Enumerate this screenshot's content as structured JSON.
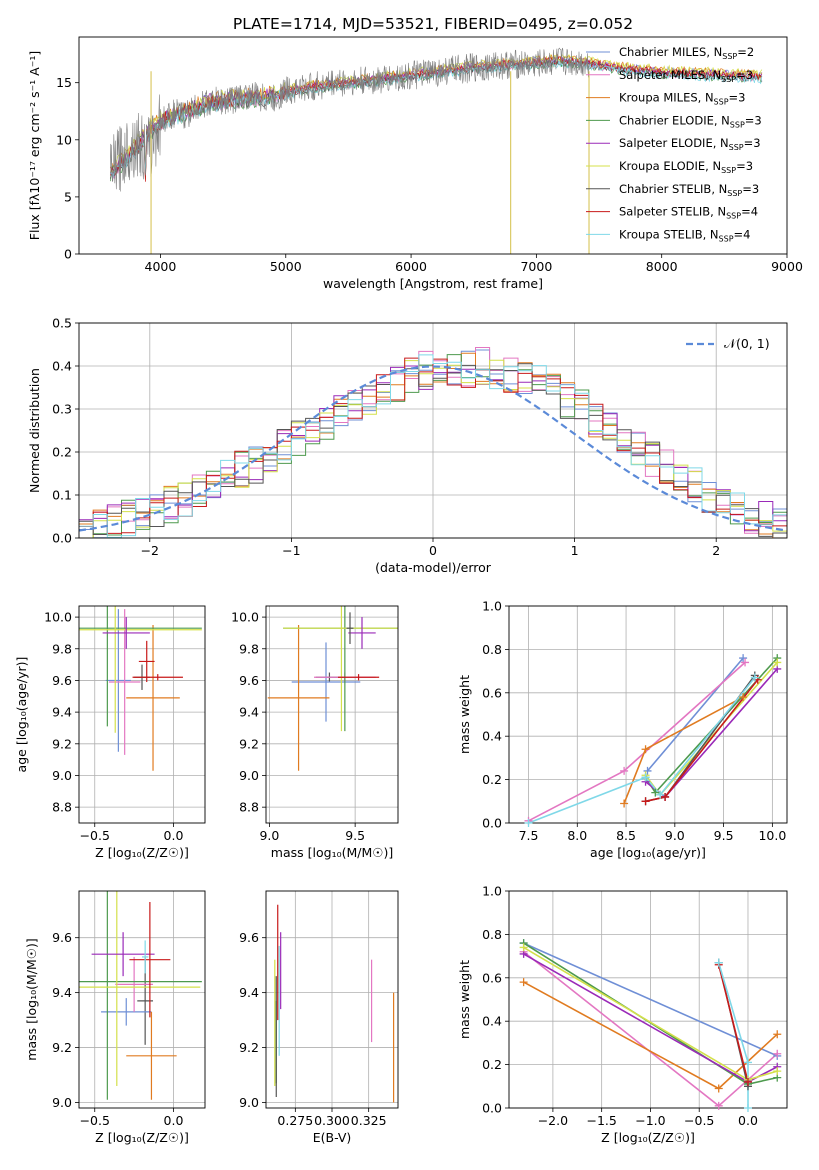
{
  "figure": {
    "title": "PLATE=1714, MJD=53521, FIBERID=0495, z=0.052"
  },
  "chart_data": [
    {
      "id": "spectrum",
      "type": "line",
      "title": "PLATE=1714, MJD=53521, FIBERID=0495, z=0.052",
      "xlabel": "wavelength [Angstrom, rest frame]",
      "ylabel": "Flux [fλ10⁻¹⁷ erg cm⁻² s⁻¹ A⁻¹]",
      "xlim": [
        3350,
        9000
      ],
      "ylim": [
        0,
        19
      ],
      "xticks": [
        "4000",
        "5000",
        "6000",
        "7000",
        "8000",
        "9000"
      ],
      "yticks": [
        "0",
        "5",
        "10",
        "15"
      ],
      "grid": false,
      "legend": "upper-right",
      "data_x": [
        3600,
        3700,
        3800,
        3900,
        4000,
        4100,
        4200,
        4300,
        4400,
        4500,
        4600,
        4700,
        4800,
        4900,
        5000,
        5200,
        5400,
        5600,
        5800,
        6000,
        6200,
        6400,
        6600,
        6800,
        7000,
        7200,
        7400
      ],
      "data_y": [
        7,
        8.8,
        9.8,
        8.9,
        11.6,
        12.3,
        12.2,
        12.9,
        13.3,
        13.4,
        13.6,
        13.9,
        13.7,
        13.5,
        14.3,
        14.6,
        15,
        15.1,
        15.3,
        15.6,
        15.9,
        16.2,
        16.4,
        16.6,
        16.6,
        16.9,
        16.7
      ],
      "models_x": [
        3600,
        4000,
        4400,
        4800,
        5200,
        5600,
        6000,
        6400,
        6800,
        7200,
        7400,
        7700,
        8000,
        8400,
        8800
      ],
      "models_y": [
        7,
        11.6,
        13.3,
        13.7,
        14.6,
        15.1,
        15.6,
        16.2,
        16.6,
        16.9,
        16.7,
        16.2,
        15.9,
        15.7,
        15.5
      ],
      "series": [
        {
          "name": "Chabrier MILES, N_SSP=2",
          "label_main": "Chabrier MILES, N",
          "label_sub": "SSP",
          "label_tail": "=2",
          "color": "#6f8fd6"
        },
        {
          "name": "Salpeter MILES, N_SSP=3",
          "label_main": "Salpeter MILES, N",
          "label_sub": "SSP",
          "label_tail": "=3",
          "color": "#e377c2"
        },
        {
          "name": "Kroupa MILES, N_SSP=3",
          "label_main": "Kroupa MILES, N",
          "label_sub": "SSP",
          "label_tail": "=3",
          "color": "#e07b20"
        },
        {
          "name": "Chabrier ELODIE, N_SSP=3",
          "label_main": "Chabrier ELODIE, N",
          "label_sub": "SSP",
          "label_tail": "=3",
          "color": "#4e9a4e"
        },
        {
          "name": "Salpeter ELODIE, N_SSP=3",
          "label_main": "Salpeter ELODIE, N",
          "label_sub": "SSP",
          "label_tail": "=3",
          "color": "#9a2ab8"
        },
        {
          "name": "Kroupa ELODIE, N_SSP=3",
          "label_main": "Kroupa ELODIE, N",
          "label_sub": "SSP",
          "label_tail": "=3",
          "color": "#d4e04a"
        },
        {
          "name": "Chabrier STELIB, N_SSP=3",
          "label_main": "Chabrier STELIB, N",
          "label_sub": "SSP",
          "label_tail": "=3",
          "color": "#555555"
        },
        {
          "name": "Salpeter STELIB, N_SSP=4",
          "label_main": "Salpeter STELIB, N",
          "label_sub": "SSP",
          "label_tail": "=4",
          "color": "#c81a1a"
        },
        {
          "name": "Kroupa STELIB, N_SSP=4",
          "label_main": "Kroupa STELIB, N",
          "label_sub": "SSP",
          "label_tail": "=4",
          "color": "#7fd8e8"
        }
      ]
    },
    {
      "id": "residuals",
      "type": "line",
      "xlabel": "(data-model)/error",
      "ylabel": "Normed distribution",
      "xlim": [
        -2.5,
        2.5
      ],
      "ylim": [
        0,
        0.5
      ],
      "xticks": [
        "−2",
        "−1",
        "0",
        "1",
        "2"
      ],
      "yticks": [
        "0.0",
        "0.1",
        "0.2",
        "0.3",
        "0.4",
        "0.5"
      ],
      "grid": true,
      "legend": "upper-right",
      "legend_label": "𝒩(0, 1)",
      "normal_curve": {
        "mean": 0,
        "sigma": 1,
        "color": "#5b8ad8"
      },
      "bin_edges_start": -2.5,
      "bin_width": 0.1,
      "base_hist": [
        0.02,
        0.03,
        0.04,
        0.05,
        0.06,
        0.07,
        0.08,
        0.09,
        0.11,
        0.13,
        0.15,
        0.16,
        0.17,
        0.19,
        0.21,
        0.23,
        0.25,
        0.27,
        0.29,
        0.31,
        0.33,
        0.35,
        0.36,
        0.38,
        0.39,
        0.4,
        0.39,
        0.39,
        0.4,
        0.39,
        0.38,
        0.37,
        0.36,
        0.34,
        0.32,
        0.3,
        0.28,
        0.25,
        0.23,
        0.21,
        0.18,
        0.16,
        0.14,
        0.12,
        0.1,
        0.08,
        0.07,
        0.05,
        0.04,
        0.03
      ]
    },
    {
      "id": "age_vs_Z",
      "type": "scatter",
      "xlabel": "Z [log₁₀(Z/Z☉)]",
      "ylabel": "age  [log₁₀(age/yr)]",
      "xlim": [
        -0.6,
        0.2
      ],
      "ylim": [
        8.7,
        10.07
      ],
      "xticks": [
        "−0.5",
        "0.0"
      ],
      "yticks": [
        "8.8",
        "9.0",
        "9.2",
        "9.4",
        "9.6",
        "9.8",
        "10.0"
      ],
      "grid": true,
      "points": [
        {
          "x": -0.2,
          "y": 9.62,
          "xerr": 0.05,
          "yerr": 0.08,
          "color": "#555555"
        },
        {
          "x": -0.35,
          "y": 9.6,
          "xerr": 0.08,
          "yerr": 0.45,
          "color": "#6f8fd6"
        },
        {
          "x": -0.31,
          "y": 9.59,
          "xerr": 0.1,
          "yerr": 0.46,
          "color": "#e377c2"
        },
        {
          "x": -0.13,
          "y": 9.49,
          "xerr": 0.17,
          "yerr": 0.46,
          "color": "#e07b20"
        },
        {
          "x": -0.42,
          "y": 9.93,
          "xerr": 0.6,
          "yerr": 0.62,
          "color": "#4e9a4e"
        },
        {
          "x": -0.37,
          "y": 9.92,
          "xerr": 0.55,
          "yerr": 0.65,
          "color": "#d4e04a"
        },
        {
          "x": -0.3,
          "y": 9.9,
          "xerr": 0.15,
          "yerr": 0.1,
          "color": "#9a2ab8"
        },
        {
          "x": -0.17,
          "y": 9.72,
          "xerr": 0.05,
          "yerr": 0.13,
          "color": "#c81a1a"
        },
        {
          "x": -0.1,
          "y": 9.62,
          "xerr": 0.16,
          "yerr": 0.02,
          "color": "#c81a1a"
        }
      ]
    },
    {
      "id": "age_vs_mass",
      "type": "scatter",
      "xlabel": "mass [log₁₀(M/M☉)]",
      "xlim": [
        8.98,
        9.75
      ],
      "ylim": [
        8.7,
        10.07
      ],
      "xticks": [
        "9.0",
        "9.5"
      ],
      "yticks": [
        "8.8",
        "9.0",
        "9.2",
        "9.4",
        "9.6",
        "9.8",
        "10.0"
      ],
      "grid": true,
      "points": [
        {
          "x": 9.35,
          "y": 9.62,
          "xerr": 0.08,
          "yerr": 0.03,
          "color": "#555555"
        },
        {
          "x": 9.33,
          "y": 9.59,
          "xerr": 0.2,
          "yerr": 0.25,
          "color": "#6f8fd6"
        },
        {
          "x": 9.44,
          "y": 9.62,
          "xerr": 0.18,
          "yerr": 0.03,
          "color": "#e377c2"
        },
        {
          "x": 9.17,
          "y": 9.49,
          "xerr": 0.18,
          "yerr": 0.46,
          "color": "#e07b20"
        },
        {
          "x": 9.44,
          "y": 9.93,
          "xerr": 0.36,
          "yerr": 0.65,
          "color": "#4e9a4e"
        },
        {
          "x": 9.42,
          "y": 9.93,
          "xerr": 0.34,
          "yerr": 0.65,
          "color": "#d4e04a"
        },
        {
          "x": 9.54,
          "y": 9.9,
          "xerr": 0.08,
          "yerr": 0.1,
          "color": "#9a2ab8"
        },
        {
          "x": 9.52,
          "y": 9.62,
          "xerr": 0.12,
          "yerr": 0.02,
          "color": "#c81a1a"
        },
        {
          "x": 9.47,
          "y": 9.93,
          "xerr": 0.02,
          "yerr": 0.1,
          "color": "#555555"
        }
      ]
    },
    {
      "id": "weight_vs_age",
      "type": "line",
      "xlabel": "age  [log₁₀(age/yr)]",
      "ylabel": "mass weight",
      "xlim": [
        7.3,
        10.15
      ],
      "ylim": [
        0,
        1
      ],
      "xticks": [
        "7.5",
        "8.0",
        "8.5",
        "9.0",
        "9.5",
        "10.0"
      ],
      "yticks": [
        "0.0",
        "0.2",
        "0.4",
        "0.6",
        "0.8",
        "1.0"
      ],
      "grid": true,
      "series": [
        {
          "name": "Chabrier MILES",
          "color": "#6f8fd6",
          "x": [
            8.72,
            9.7
          ],
          "y": [
            0.24,
            0.76
          ]
        },
        {
          "name": "Salpeter MILES",
          "color": "#e377c2",
          "x": [
            7.5,
            8.48,
            9.72
          ],
          "y": [
            0.01,
            0.24,
            0.74
          ]
        },
        {
          "name": "Kroupa MILES",
          "color": "#e07b20",
          "x": [
            8.48,
            8.7,
            9.7
          ],
          "y": [
            0.09,
            0.34,
            0.58
          ]
        },
        {
          "name": "Chabrier ELODIE",
          "color": "#4e9a4e",
          "x": [
            8.7,
            8.8,
            10.05
          ],
          "y": [
            0.21,
            0.14,
            0.76
          ]
        },
        {
          "name": "Salpeter ELODIE",
          "color": "#9a2ab8",
          "x": [
            8.7,
            8.9,
            10.05
          ],
          "y": [
            0.19,
            0.12,
            0.71
          ]
        },
        {
          "name": "Kroupa ELODIE",
          "color": "#d4e04a",
          "x": [
            8.7,
            8.85,
            10.05
          ],
          "y": [
            0.22,
            0.13,
            0.74
          ]
        },
        {
          "name": "Chabrier STELIB",
          "color": "#555555",
          "x": [
            8.7,
            8.9,
            9.82
          ],
          "y": [
            0.1,
            0.12,
            0.68
          ]
        },
        {
          "name": "Salpeter STELIB",
          "color": "#c81a1a",
          "x": [
            8.7,
            8.9,
            9.85
          ],
          "y": [
            0.1,
            0.12,
            0.66
          ]
        },
        {
          "name": "Kroupa STELIB",
          "color": "#7fd8e8",
          "x": [
            7.5,
            8.7,
            8.85,
            9.82
          ],
          "y": [
            0.0,
            0.21,
            0.13,
            0.67
          ]
        }
      ]
    },
    {
      "id": "mass_vs_Z",
      "type": "scatter",
      "xlabel": "Z [log₁₀(Z/Z☉)]",
      "ylabel": "mass [log₁₀(M/M☉)]",
      "xlim": [
        -0.6,
        0.2
      ],
      "ylim": [
        8.98,
        9.77
      ],
      "xticks": [
        "−0.5",
        "0.0"
      ],
      "yticks": [
        "9.0",
        "9.2",
        "9.4",
        "9.6"
      ],
      "grid": true,
      "points": [
        {
          "x": -0.18,
          "y": 9.37,
          "xerr": 0.05,
          "yerr": 0.16,
          "color": "#555555"
        },
        {
          "x": -0.3,
          "y": 9.33,
          "xerr": 0.16,
          "yerr": 0.05,
          "color": "#6f8fd6"
        },
        {
          "x": -0.25,
          "y": 9.43,
          "xerr": 0.12,
          "yerr": 0.1,
          "color": "#e377c2"
        },
        {
          "x": -0.14,
          "y": 9.17,
          "xerr": 0.16,
          "yerr": 0.16,
          "color": "#e07b20"
        },
        {
          "x": -0.42,
          "y": 9.44,
          "xerr": 0.6,
          "yerr": 0.43,
          "color": "#4e9a4e"
        },
        {
          "x": -0.36,
          "y": 9.42,
          "xerr": 0.53,
          "yerr": 0.36,
          "color": "#d4e04a"
        },
        {
          "x": -0.32,
          "y": 9.54,
          "xerr": 0.2,
          "yerr": 0.08,
          "color": "#9a2ab8"
        },
        {
          "x": -0.15,
          "y": 9.52,
          "xerr": 0.13,
          "yerr": 0.21,
          "color": "#c81a1a"
        },
        {
          "x": -0.18,
          "y": 9.53,
          "xerr": 0.02,
          "yerr": 0.06,
          "color": "#7fd8e8"
        }
      ]
    },
    {
      "id": "mass_vs_ebv",
      "type": "scatter",
      "xlabel": "E(B-V)",
      "xlim": [
        0.255,
        0.345
      ],
      "ylim": [
        8.98,
        9.77
      ],
      "xticks": [
        "0.275",
        "0.300",
        "0.325"
      ],
      "yticks": [
        "9.0",
        "9.2",
        "9.4",
        "9.6"
      ],
      "grid": true,
      "points": [
        {
          "x": 0.262,
          "y": 9.22,
          "yerr": 0.15,
          "color": "#4e9a4e"
        },
        {
          "x": 0.263,
          "y": 9.51,
          "yerr": 0.21,
          "color": "#c81a1a"
        },
        {
          "x": 0.264,
          "y": 9.37,
          "yerr": 0.2,
          "color": "#7fd8e8"
        },
        {
          "x": 0.265,
          "y": 9.48,
          "yerr": 0.14,
          "color": "#9a2ab8"
        },
        {
          "x": 0.261,
          "y": 9.29,
          "yerr": 0.23,
          "color": "#d4e04a"
        },
        {
          "x": 0.262,
          "y": 9.24,
          "yerr": 0.22,
          "color": "#555555"
        },
        {
          "x": 0.327,
          "y": 9.37,
          "yerr": 0.15,
          "color": "#e377c2"
        },
        {
          "x": 0.342,
          "y": 9.2,
          "yerr": 0.2,
          "color": "#e07b20"
        }
      ]
    },
    {
      "id": "weight_vs_Z",
      "type": "line",
      "xlabel": "Z [log₁₀(Z/Z☉)]",
      "ylabel": "mass weight",
      "xlim": [
        -2.45,
        0.4
      ],
      "ylim": [
        0,
        1
      ],
      "xticks": [
        "−2.0",
        "−1.5",
        "−1.0",
        "−0.5",
        "0.0"
      ],
      "yticks": [
        "0.0",
        "0.2",
        "0.4",
        "0.6",
        "0.8",
        "1.0"
      ],
      "grid": true,
      "series": [
        {
          "name": "Chabrier MILES",
          "color": "#6f8fd6",
          "x": [
            -2.3,
            0.3
          ],
          "y": [
            0.76,
            0.24
          ]
        },
        {
          "name": "Salpeter MILES",
          "color": "#e377c2",
          "x": [
            -2.3,
            -0.3,
            0.3
          ],
          "y": [
            0.72,
            0.01,
            0.25
          ]
        },
        {
          "name": "Kroupa MILES",
          "color": "#e07b20",
          "x": [
            -2.3,
            -0.3,
            0.3
          ],
          "y": [
            0.58,
            0.09,
            0.34
          ]
        },
        {
          "name": "Chabrier ELODIE",
          "color": "#4e9a4e",
          "x": [
            -2.3,
            0.0,
            0.3
          ],
          "y": [
            0.76,
            0.11,
            0.14
          ]
        },
        {
          "name": "Salpeter ELODIE",
          "color": "#9a2ab8",
          "x": [
            -2.3,
            0.0,
            0.3
          ],
          "y": [
            0.71,
            0.12,
            0.19
          ]
        },
        {
          "name": "Kroupa ELODIE",
          "color": "#d4e04a",
          "x": [
            -2.3,
            0.0,
            0.3
          ],
          "y": [
            0.74,
            0.13,
            0.17
          ]
        },
        {
          "name": "Chabrier STELIB",
          "color": "#555555",
          "x": [
            -0.3,
            0.0
          ],
          "y": [
            0.67,
            0.1
          ]
        },
        {
          "name": "Salpeter STELIB",
          "color": "#c81a1a",
          "x": [
            -0.3,
            0.0
          ],
          "y": [
            0.66,
            0.12
          ]
        },
        {
          "name": "Kroupa STELIB",
          "color": "#7fd8e8",
          "x": [
            -0.3,
            0.0,
            0.0
          ],
          "y": [
            0.67,
            0.21,
            0.0
          ]
        }
      ]
    }
  ]
}
